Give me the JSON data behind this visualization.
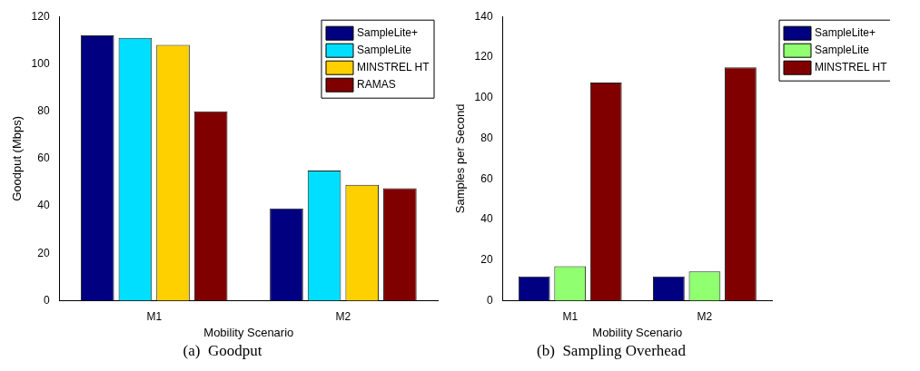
{
  "chart_data": [
    {
      "type": "bar",
      "title": "(a)  Goodput",
      "xlabel": "Mobility Scenario",
      "ylabel": "Goodput (Mbps)",
      "categories": [
        "M1",
        "M2"
      ],
      "series": [
        {
          "name": "SampleLite+",
          "color": "#000080",
          "values": [
            112,
            39
          ]
        },
        {
          "name": "SampleLite",
          "color": "#00dfff",
          "values": [
            111,
            55
          ]
        },
        {
          "name": "MINSTREL HT",
          "color": "#ffd000",
          "values": [
            108,
            49
          ]
        },
        {
          "name": "RAMAS",
          "color": "#800000",
          "values": [
            80,
            47.5
          ]
        }
      ],
      "ylim": [
        0,
        120
      ],
      "yticks": [
        0,
        20,
        40,
        60,
        80,
        100,
        120
      ],
      "grid": false,
      "legend": "top right"
    },
    {
      "type": "bar",
      "title": "(b)  Sampling Overhead",
      "xlabel": "Mobility Scenario",
      "ylabel": "Samples per Second",
      "categories": [
        "M1",
        "M2"
      ],
      "series": [
        {
          "name": "SampleLite+",
          "color": "#000080",
          "values": [
            12,
            12
          ]
        },
        {
          "name": "SampleLite",
          "color": "#90ff70",
          "values": [
            17,
            14.5
          ]
        },
        {
          "name": "MINSTREL HT",
          "color": "#800000",
          "values": [
            107.5,
            115
          ]
        }
      ],
      "ylim": [
        0,
        140
      ],
      "yticks": [
        0,
        20,
        40,
        60,
        80,
        100,
        120,
        140
      ],
      "grid": false,
      "legend": "right"
    }
  ]
}
